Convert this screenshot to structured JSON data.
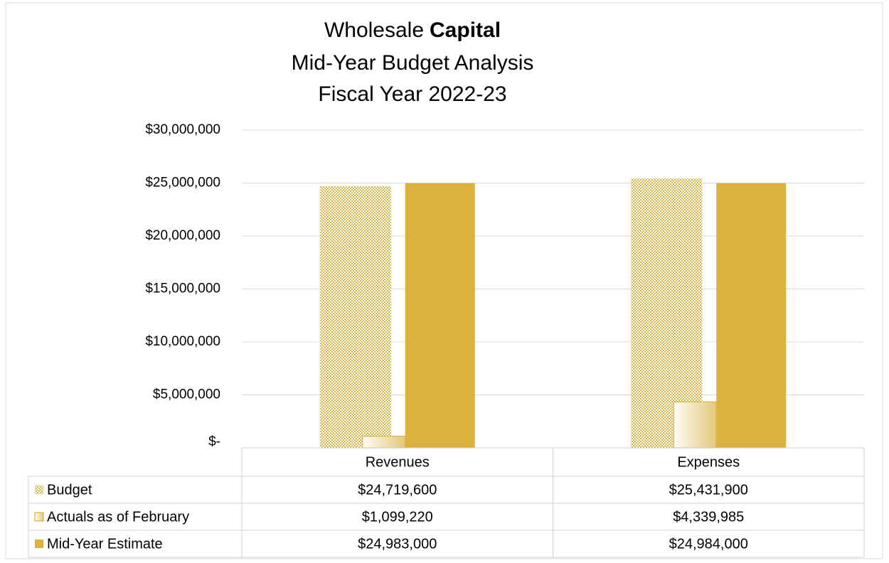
{
  "chart_data": {
    "type": "bar",
    "title": "Wholesale",
    "title_bold": "Capital",
    "subtitle": [
      "Mid-Year Budget Analysis",
      "Fiscal Year 2022-23"
    ],
    "categories": [
      "Revenues",
      "Expenses"
    ],
    "series": [
      {
        "name": "Budget",
        "color": "#d8b646",
        "fill_style": "checker",
        "values": [
          24719600,
          25431900
        ],
        "value_labels": [
          "$24,719,600",
          "$25,431,900"
        ]
      },
      {
        "name": "Actuals as of February",
        "color": "#d8b646",
        "fill_style": "gradient",
        "values": [
          1099220,
          4339985
        ],
        "value_labels": [
          "$1,099,220",
          "$4,339,985"
        ]
      },
      {
        "name": "Mid-Year Estimate",
        "color": "#dcb13c",
        "fill_style": "solid",
        "values": [
          24983000,
          24984000
        ],
        "value_labels": [
          "$24,983,000",
          "$24,984,000"
        ]
      }
    ],
    "ylim": [
      0,
      30000000
    ],
    "yticks": [
      {
        "value": 0,
        "label": "$-"
      },
      {
        "value": 5000000,
        "label": "$5,000,000"
      },
      {
        "value": 10000000,
        "label": "$10,000,000"
      },
      {
        "value": 15000000,
        "label": "$15,000,000"
      },
      {
        "value": 20000000,
        "label": "$20,000,000"
      },
      {
        "value": 25000000,
        "label": "$25,000,000"
      },
      {
        "value": 30000000,
        "label": "$30,000,000"
      }
    ],
    "grid": true
  }
}
